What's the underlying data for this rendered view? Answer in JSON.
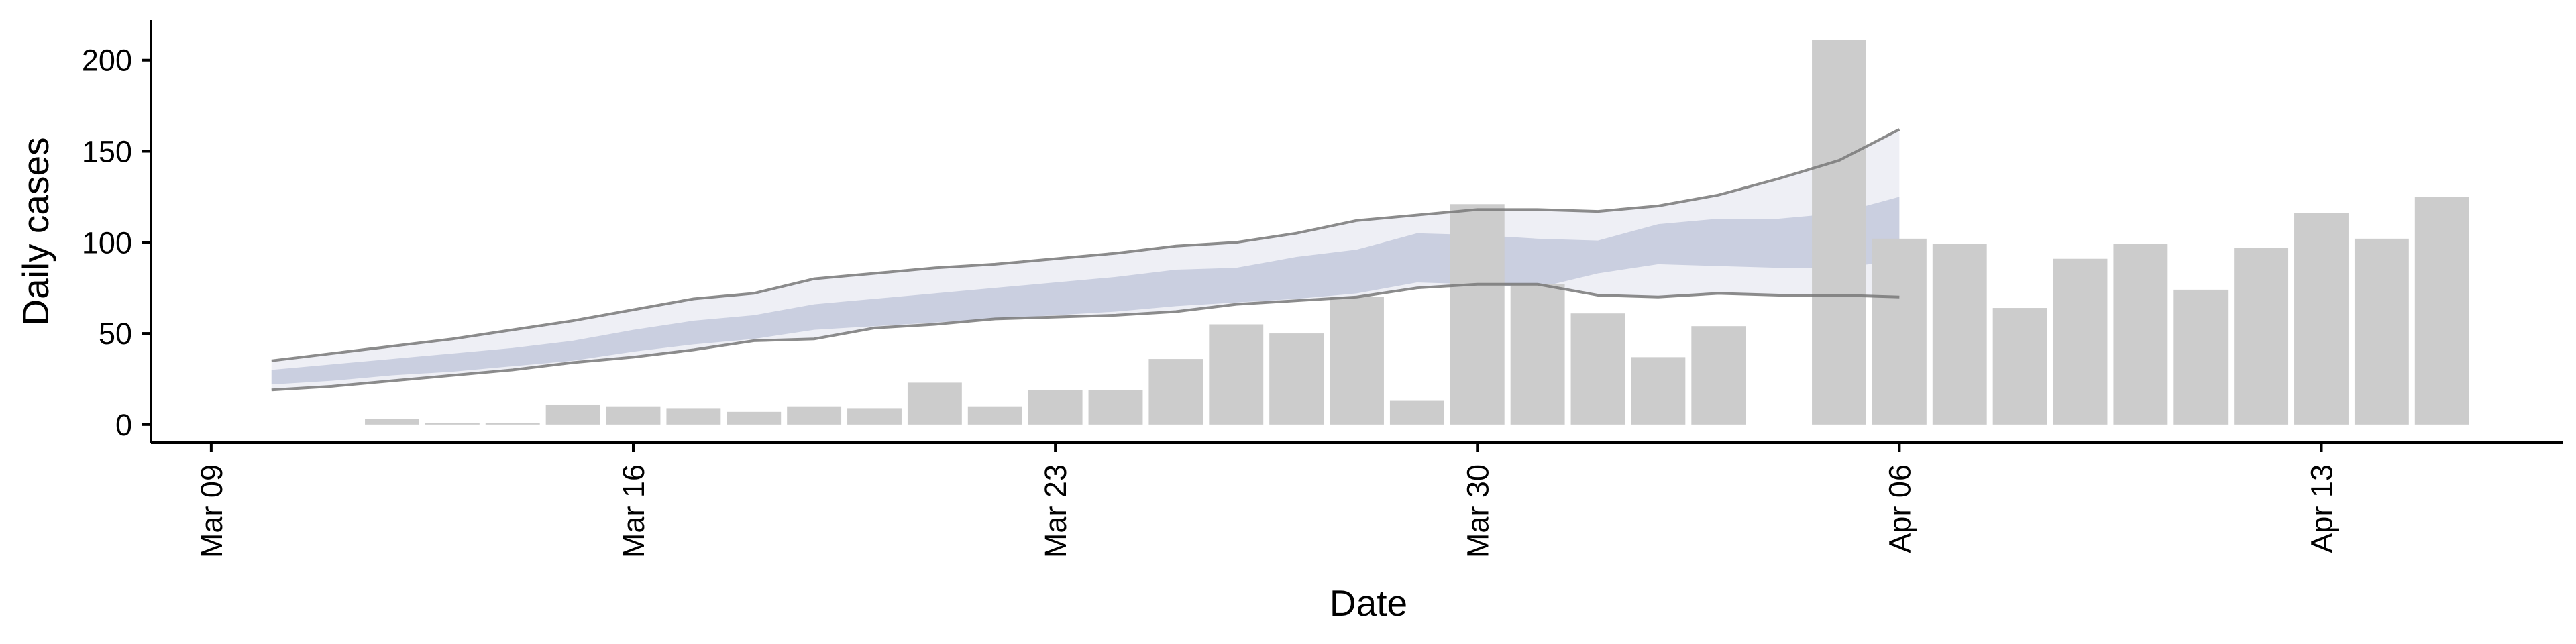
{
  "chart_data": {
    "type": "bar",
    "xlabel": "Date",
    "ylabel": "Daily cases",
    "x_ticks": [
      "Mar 09",
      "Mar 16",
      "Mar 23",
      "Mar 30",
      "Apr 06",
      "Apr 13"
    ],
    "x_tick_dates": [
      "2020-03-09",
      "2020-03-16",
      "2020-03-23",
      "2020-03-30",
      "2020-04-06",
      "2020-04-13"
    ],
    "y_ticks": [
      0,
      50,
      100,
      150,
      200
    ],
    "ylim": [
      -10,
      222
    ],
    "xlim": [
      "2020-03-08",
      "2020-04-17"
    ],
    "grid": false,
    "legend": "none",
    "colors": {
      "bars": "#cccccc",
      "band_outer": "#e8eaf2",
      "band_inner": "#c3c9dc",
      "band_line": "#787878"
    },
    "bars": {
      "dates": [
        "2020-03-12",
        "2020-03-13",
        "2020-03-14",
        "2020-03-15",
        "2020-03-16",
        "2020-03-17",
        "2020-03-18",
        "2020-03-19",
        "2020-03-20",
        "2020-03-21",
        "2020-03-22",
        "2020-03-23",
        "2020-03-24",
        "2020-03-25",
        "2020-03-26",
        "2020-03-27",
        "2020-03-28",
        "2020-03-29",
        "2020-03-30",
        "2020-03-31",
        "2020-04-01",
        "2020-04-02",
        "2020-04-03",
        "2020-04-05",
        "2020-04-06",
        "2020-04-07",
        "2020-04-08",
        "2020-04-09",
        "2020-04-10",
        "2020-04-11",
        "2020-04-12",
        "2020-04-13",
        "2020-04-14",
        "2020-04-15"
      ],
      "values": [
        3,
        1,
        1,
        11,
        10,
        9,
        7,
        10,
        9,
        23,
        10,
        19,
        19,
        36,
        55,
        50,
        70,
        13,
        121,
        77,
        61,
        37,
        54,
        211,
        102,
        99,
        64,
        91,
        99,
        74,
        97,
        116,
        102,
        125
      ]
    },
    "estimate": {
      "dates": [
        "2020-03-10",
        "2020-03-11",
        "2020-03-12",
        "2020-03-13",
        "2020-03-14",
        "2020-03-15",
        "2020-03-16",
        "2020-03-17",
        "2020-03-18",
        "2020-03-19",
        "2020-03-20",
        "2020-03-21",
        "2020-03-22",
        "2020-03-23",
        "2020-03-24",
        "2020-03-25",
        "2020-03-26",
        "2020-03-27",
        "2020-03-28",
        "2020-03-29",
        "2020-03-30",
        "2020-03-31",
        "2020-04-01",
        "2020-04-02",
        "2020-04-03",
        "2020-04-04",
        "2020-04-05",
        "2020-04-06"
      ],
      "upper_90": [
        35,
        39,
        43,
        47,
        52,
        57,
        63,
        69,
        72,
        80,
        83,
        86,
        88,
        91,
        94,
        98,
        100,
        105,
        112,
        115,
        118,
        118,
        117,
        120,
        126,
        135,
        145,
        162
      ],
      "upper_50": [
        30,
        33,
        36,
        39,
        42,
        46,
        52,
        57,
        60,
        66,
        69,
        72,
        75,
        78,
        81,
        85,
        86,
        92,
        96,
        105,
        104,
        102,
        101,
        110,
        113,
        113,
        116,
        125
      ],
      "lower_50": [
        22,
        24,
        27,
        29,
        32,
        35,
        40,
        44,
        47,
        52,
        54,
        56,
        58,
        60,
        62,
        65,
        67,
        69,
        72,
        78,
        77,
        75,
        83,
        88,
        87,
        86,
        86,
        90
      ],
      "lower_90": [
        19,
        21,
        24,
        27,
        30,
        34,
        37,
        41,
        46,
        47,
        53,
        55,
        58,
        59,
        60,
        62,
        66,
        68,
        70,
        75,
        77,
        77,
        71,
        70,
        72,
        71,
        71,
        70
      ]
    }
  }
}
